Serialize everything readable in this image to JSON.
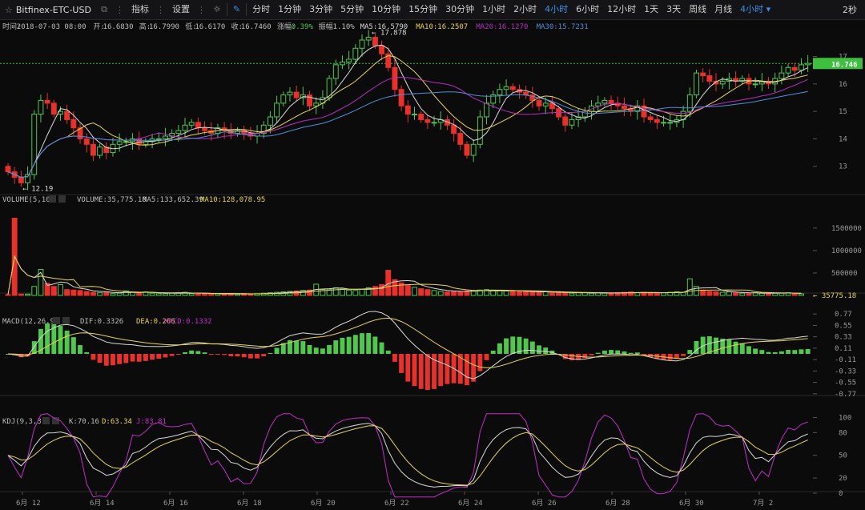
{
  "toolbar": {
    "symbol": "Bitfinex-ETC-USD",
    "indicators_label": "指标",
    "settings_label": "设置",
    "intervals": [
      "分时",
      "1分钟",
      "3分钟",
      "5分钟",
      "10分钟",
      "15分钟",
      "30分钟",
      "1小时",
      "2小时",
      "4小时",
      "6小时",
      "12小时",
      "1天",
      "3天",
      "周线",
      "月线"
    ],
    "active_interval": "4小时",
    "interval_dropdown": "4小时",
    "refresh": "2秒"
  },
  "colors": {
    "up": "#4fc84c",
    "down": "#e8312a",
    "ma5": "#d9d9d9",
    "ma10": "#e8d44d",
    "ma20": "#b52ec1",
    "ma30": "#4f8fd6",
    "k": "#d9d9d9",
    "d": "#e8d44d",
    "j": "#c12ec9",
    "last_price_bg": "#3fbf3f"
  },
  "info": {
    "time_label": "时间:",
    "time": "2018-07-03 08:00",
    "open_label": "开:",
    "open": "16.6830",
    "high_label": "高:",
    "high": "16.7990",
    "low_label": "低:",
    "low": "16.6170",
    "close_label": "收:",
    "close": "16.7460",
    "change_label": "涨幅:",
    "change": "0.39%",
    "amp_label": "振幅:",
    "amp": "1.10%",
    "ma5": "MA5:16.5790",
    "ma10": "MA10:16.2507",
    "ma20": "MA20:16.1270",
    "ma30": "MA30:15.7231"
  },
  "volume_header": {
    "title": "VOLUME(5,10)",
    "volume": "VOLUME:35,775.18",
    "ma5": "MA5:133,652.39",
    "ma10": "MA10:128,078.95"
  },
  "macd_header": {
    "title": "MACD(12,26,9)",
    "dif": "DIF:0.3326",
    "dea": "DEA:0.266",
    "macd": "MACD:0.1332"
  },
  "kdj_header": {
    "title": "KDJ(9,3,3)",
    "k": "K:70.16",
    "d": "D:63.34",
    "j": "J:83.81"
  },
  "chart_data": {
    "type": "candlestick",
    "x_labels": [
      "6月 12",
      "6月 14",
      "6月 16",
      "6月 18",
      "6月 20",
      "6月 22",
      "6月 24",
      "6月 26",
      "6月 28",
      "6月 30",
      "7月 2"
    ],
    "price_axis": {
      "ticks": [
        13,
        14,
        15,
        16,
        17
      ],
      "range": [
        12.0,
        17.95
      ]
    },
    "last_price": "16.746",
    "high_marker": "17.878",
    "low_marker": "12.19",
    "closes": [
      12.8,
      12.6,
      12.4,
      12.7,
      14.9,
      15.4,
      15.3,
      14.9,
      15.0,
      14.7,
      14.4,
      14.0,
      13.8,
      13.4,
      13.7,
      13.5,
      13.8,
      13.9,
      13.9,
      14.0,
      13.8,
      13.9,
      14.0,
      14.0,
      14.1,
      14.2,
      14.3,
      14.5,
      14.6,
      14.4,
      14.3,
      14.2,
      14.4,
      14.3,
      14.2,
      14.3,
      14.2,
      14.1,
      14.2,
      14.5,
      14.8,
      15.3,
      15.6,
      15.7,
      15.5,
      15.6,
      15.2,
      15.3,
      15.5,
      16.2,
      16.7,
      16.8,
      16.9,
      17.3,
      17.6,
      17.7,
      17.4,
      17.1,
      16.6,
      15.8,
      15.2,
      14.9,
      14.9,
      14.7,
      14.6,
      14.6,
      14.7,
      14.5,
      14.2,
      13.8,
      13.4,
      13.8,
      14.8,
      15.3,
      15.6,
      15.8,
      15.9,
      15.8,
      15.7,
      15.6,
      15.4,
      15.2,
      15.3,
      15.1,
      14.8,
      14.5,
      14.7,
      14.8,
      15.0,
      15.2,
      15.3,
      15.4,
      15.3,
      15.2,
      15.1,
      15.0,
      15.2,
      14.8,
      14.7,
      14.6,
      14.6,
      14.6,
      14.7,
      15.0,
      15.6,
      16.4,
      16.3,
      16.1,
      16.0,
      16.1,
      16.2,
      16.1,
      16.2,
      16.0,
      16.0,
      16.1,
      16.0,
      16.2,
      16.4,
      16.6,
      16.5,
      16.7,
      16.75
    ],
    "volumes": [
      20,
      1720,
      30,
      30,
      200,
      580,
      270,
      200,
      240,
      130,
      120,
      110,
      90,
      70,
      60,
      80,
      40,
      50,
      100,
      70,
      60,
      80,
      50,
      40,
      40,
      50,
      60,
      70,
      40,
      40,
      40,
      30,
      40,
      30,
      40,
      30,
      40,
      30,
      40,
      50,
      60,
      70,
      80,
      90,
      100,
      110,
      120,
      250,
      130,
      140,
      170,
      140,
      120,
      110,
      140,
      170,
      200,
      240,
      560,
      350,
      280,
      220,
      180,
      150,
      130,
      110,
      90,
      80,
      90,
      90,
      100,
      110,
      120,
      130,
      120,
      110,
      100,
      90,
      90,
      80,
      80,
      70,
      80,
      60,
      70,
      60,
      50,
      60,
      60,
      50,
      60,
      50,
      50,
      60,
      70,
      80,
      60,
      70,
      60,
      50,
      60,
      70,
      80,
      70,
      370,
      200,
      120,
      90,
      80,
      70,
      80,
      60,
      50,
      40,
      60,
      50,
      60,
      50,
      50,
      60,
      40,
      35.8
    ],
    "macd_axis": [
      0.77,
      0.55,
      0.33,
      0.11,
      -0.11,
      -0.33,
      -0.55,
      -0.77
    ],
    "kdj_axis": [
      100,
      80,
      50,
      20,
      0
    ]
  }
}
